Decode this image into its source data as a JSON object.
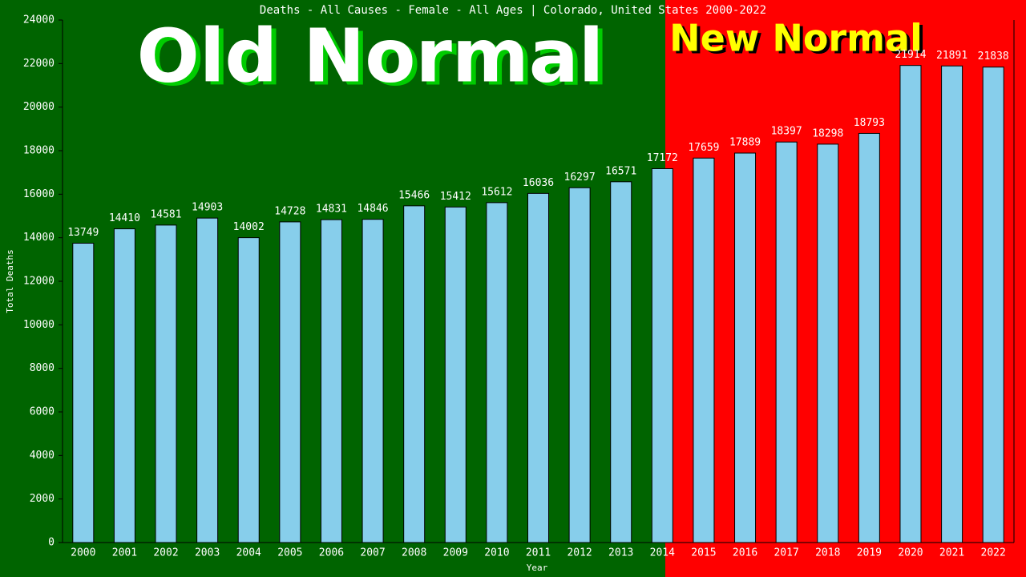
{
  "chart_data": {
    "type": "bar",
    "title": "Deaths - All Causes - Female - All Ages | Colorado, United States 2000-2022",
    "x_label": "Year",
    "y_label": "Total Deaths",
    "annotations": [
      "Old Normal",
      "New Normal"
    ],
    "categories": [
      "2000",
      "2001",
      "2002",
      "2003",
      "2004",
      "2005",
      "2006",
      "2007",
      "2008",
      "2009",
      "2010",
      "2011",
      "2012",
      "2013",
      "2014",
      "2015",
      "2016",
      "2017",
      "2018",
      "2019",
      "2020",
      "2021",
      "2022"
    ],
    "values": [
      13749,
      14410,
      14581,
      14903,
      14002,
      14728,
      14831,
      14846,
      15466,
      15412,
      15612,
      16036,
      16297,
      16571,
      17172,
      17659,
      17889,
      18397,
      18298,
      18793,
      21914,
      21891,
      21838
    ],
    "color": "#87ceeb",
    "ylim": [
      0,
      24000
    ],
    "yticks": [
      0,
      2000,
      4000,
      6000,
      8000,
      10000,
      12000,
      14000,
      16000,
      18000,
      20000,
      22000,
      24000
    ]
  }
}
